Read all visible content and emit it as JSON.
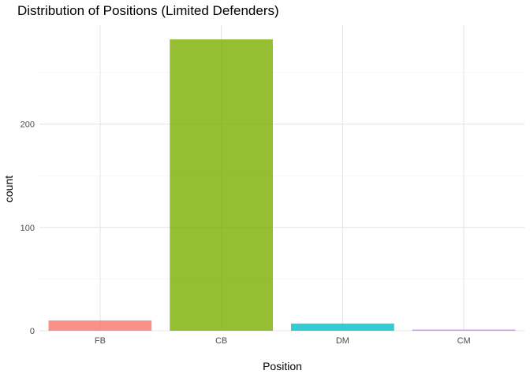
{
  "chart_data": {
    "type": "bar",
    "title": "Distribution of Positions (Limited Defenders)",
    "xlabel": "Position",
    "ylabel": "count",
    "categories": [
      "FB",
      "CB",
      "DM",
      "CM"
    ],
    "values": [
      10,
      282,
      7,
      1
    ],
    "colors": [
      "#F8766D",
      "#7CAE00",
      "#00BFC4",
      "#C77CFF"
    ],
    "ylim": [
      0,
      282
    ],
    "yticks": [
      0,
      100,
      200
    ],
    "grid": true,
    "legend": "none"
  }
}
